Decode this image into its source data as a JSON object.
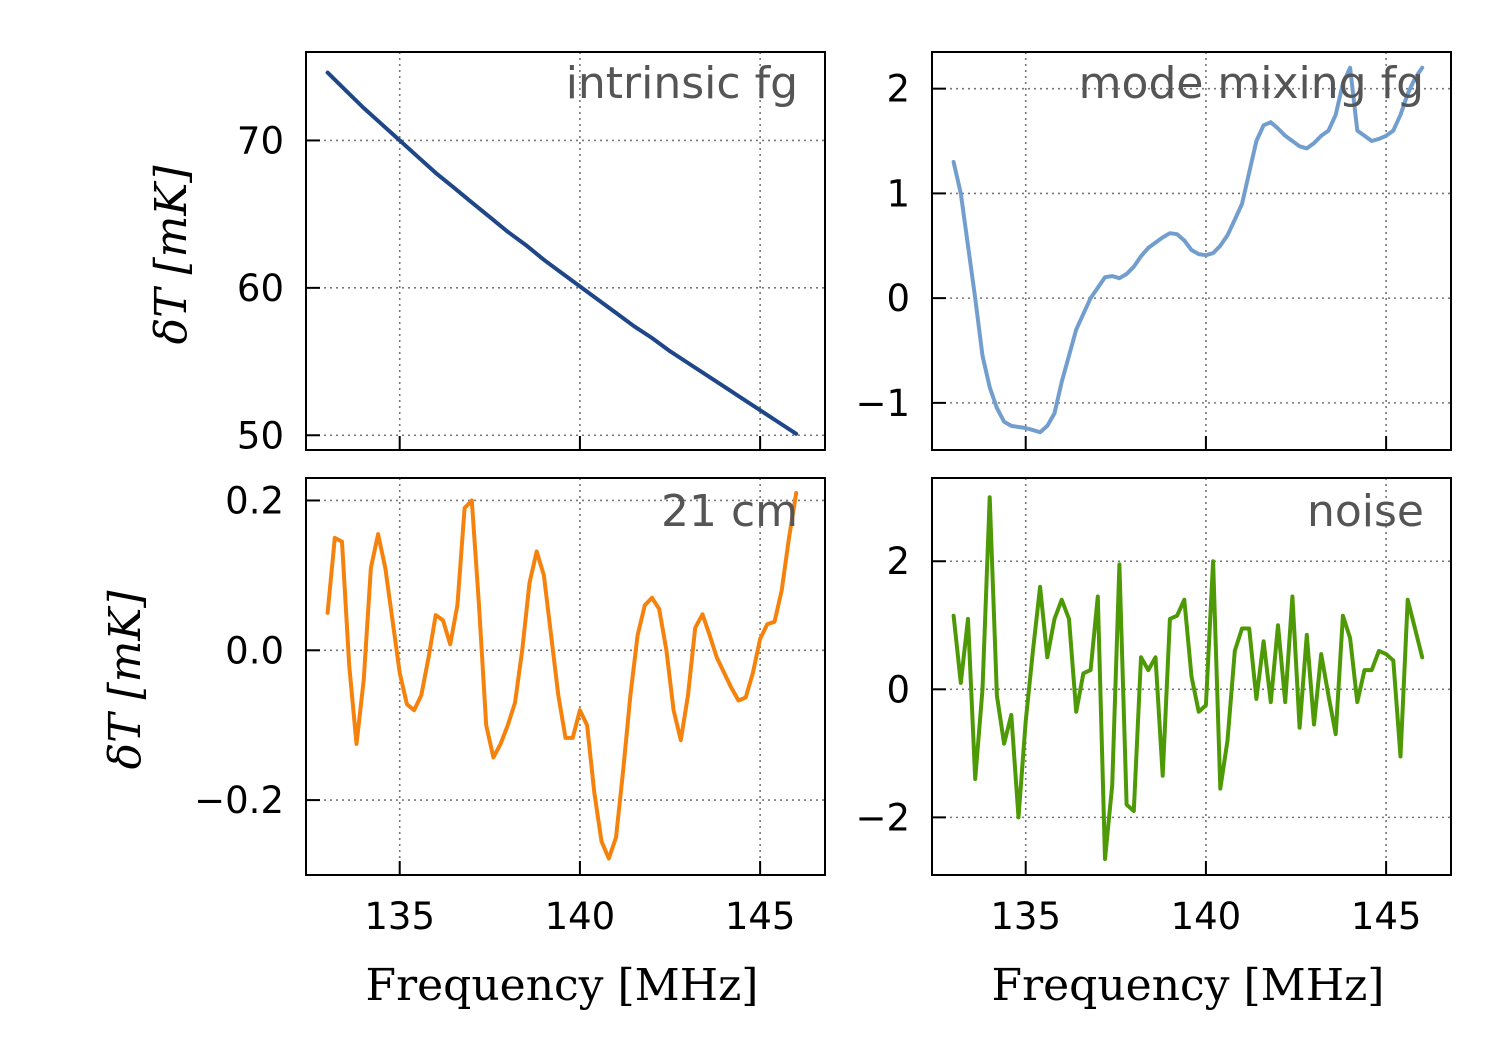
{
  "chart_data": [
    {
      "type": "line",
      "panel": "top-left",
      "title": "intrinsic fg",
      "xlabel": "",
      "ylabel": "δT [mK]",
      "xlim": [
        132.4,
        146.8
      ],
      "ylim": [
        49.0,
        76.0
      ],
      "xticks": [
        135,
        140,
        145
      ],
      "xtick_labels": [
        "135",
        "140",
        "145"
      ],
      "yticks": [
        50,
        60,
        70
      ],
      "ytick_labels": [
        "50",
        "60",
        "70"
      ],
      "color": "#1f4788",
      "x": [
        133.0,
        133.5,
        134.0,
        134.5,
        135.0,
        135.5,
        136.0,
        136.5,
        137.0,
        137.5,
        138.0,
        138.5,
        139.0,
        139.5,
        140.0,
        140.5,
        141.0,
        141.5,
        142.0,
        142.5,
        143.0,
        143.5,
        144.0,
        144.5,
        145.0,
        145.5,
        146.0
      ],
      "y": [
        74.6,
        73.4,
        72.2,
        71.1,
        70.0,
        68.9,
        67.8,
        66.8,
        65.8,
        64.8,
        63.8,
        62.9,
        61.9,
        61.0,
        60.1,
        59.2,
        58.3,
        57.4,
        56.6,
        55.7,
        54.9,
        54.1,
        53.3,
        52.5,
        51.7,
        50.9,
        50.1
      ]
    },
    {
      "type": "line",
      "panel": "top-right",
      "title": "mode mixing fg",
      "xlabel": "",
      "ylabel": "",
      "xlim": [
        132.4,
        146.8
      ],
      "ylim": [
        -1.45,
        2.35
      ],
      "xticks": [
        135,
        140,
        145
      ],
      "xtick_labels": [
        "135",
        "140",
        "145"
      ],
      "yticks": [
        -1,
        0,
        1,
        2
      ],
      "ytick_labels": [
        "−1",
        "0",
        "1",
        "2"
      ],
      "color": "#729ece",
      "x": [
        133.0,
        133.2,
        133.4,
        133.6,
        133.8,
        134.0,
        134.2,
        134.4,
        134.6,
        134.8,
        135.0,
        135.2,
        135.4,
        135.6,
        135.8,
        136.0,
        136.2,
        136.4,
        136.6,
        136.8,
        137.0,
        137.2,
        137.4,
        137.6,
        137.8,
        138.0,
        138.2,
        138.4,
        138.6,
        138.8,
        139.0,
        139.2,
        139.4,
        139.6,
        139.8,
        140.0,
        140.2,
        140.4,
        140.6,
        140.8,
        141.0,
        141.2,
        141.4,
        141.6,
        141.8,
        142.0,
        142.2,
        142.4,
        142.6,
        142.8,
        143.0,
        143.2,
        143.4,
        143.6,
        143.8,
        144.0,
        144.2,
        144.4,
        144.6,
        144.8,
        145.0,
        145.2,
        145.4,
        145.6,
        145.8,
        146.0
      ],
      "y": [
        1.3,
        1.0,
        0.5,
        0.0,
        -0.55,
        -0.85,
        -1.05,
        -1.18,
        -1.22,
        -1.23,
        -1.24,
        -1.26,
        -1.28,
        -1.22,
        -1.1,
        -0.8,
        -0.55,
        -0.3,
        -0.15,
        0.0,
        0.1,
        0.2,
        0.21,
        0.19,
        0.23,
        0.3,
        0.4,
        0.48,
        0.53,
        0.58,
        0.62,
        0.61,
        0.55,
        0.46,
        0.42,
        0.41,
        0.43,
        0.5,
        0.6,
        0.75,
        0.9,
        1.2,
        1.5,
        1.65,
        1.68,
        1.62,
        1.55,
        1.5,
        1.45,
        1.43,
        1.48,
        1.55,
        1.6,
        1.75,
        2.05,
        2.2,
        1.6,
        1.55,
        1.5,
        1.52,
        1.55,
        1.6,
        1.75,
        1.95,
        2.1,
        2.2
      ]
    },
    {
      "type": "line",
      "panel": "bottom-left",
      "title": "21 cm",
      "xlabel": "Frequency [MHz]",
      "ylabel": "δT [mK]",
      "xlim": [
        132.4,
        146.8
      ],
      "ylim": [
        -0.3,
        0.23
      ],
      "xticks": [
        135,
        140,
        145
      ],
      "xtick_labels": [
        "135",
        "140",
        "145"
      ],
      "yticks": [
        -0.2,
        0.0,
        0.2
      ],
      "ytick_labels": [
        "−0.2",
        "0.0",
        "0.2"
      ],
      "color": "#f5820d",
      "x": [
        133.0,
        133.2,
        133.4,
        133.6,
        133.8,
        134.0,
        134.2,
        134.4,
        134.6,
        134.8,
        135.0,
        135.2,
        135.4,
        135.6,
        135.8,
        136.0,
        136.2,
        136.4,
        136.6,
        136.8,
        137.0,
        137.2,
        137.4,
        137.6,
        137.8,
        138.0,
        138.2,
        138.4,
        138.6,
        138.8,
        139.0,
        139.2,
        139.4,
        139.6,
        139.8,
        140.0,
        140.2,
        140.4,
        140.6,
        140.8,
        141.0,
        141.2,
        141.4,
        141.6,
        141.8,
        142.0,
        142.2,
        142.4,
        142.6,
        142.8,
        143.0,
        143.2,
        143.4,
        143.6,
        143.8,
        144.0,
        144.2,
        144.4,
        144.6,
        144.8,
        145.0,
        145.2,
        145.4,
        145.6,
        145.8,
        146.0
      ],
      "y": [
        0.05,
        0.15,
        0.145,
        -0.02,
        -0.125,
        -0.04,
        0.11,
        0.155,
        0.11,
        0.04,
        -0.03,
        -0.072,
        -0.08,
        -0.06,
        -0.01,
        0.047,
        0.04,
        0.008,
        0.06,
        0.19,
        0.2,
        0.06,
        -0.1,
        -0.143,
        -0.125,
        -0.1,
        -0.07,
        0.0,
        0.09,
        0.132,
        0.1,
        0.02,
        -0.06,
        -0.117,
        -0.117,
        -0.08,
        -0.1,
        -0.19,
        -0.255,
        -0.278,
        -0.25,
        -0.16,
        -0.06,
        0.02,
        0.06,
        0.07,
        0.055,
        0.0,
        -0.08,
        -0.12,
        -0.06,
        0.03,
        0.048,
        0.02,
        -0.01,
        -0.03,
        -0.05,
        -0.067,
        -0.063,
        -0.03,
        0.015,
        0.035,
        0.038,
        0.08,
        0.15,
        0.21
      ]
    },
    {
      "type": "line",
      "panel": "bottom-right",
      "title": "noise",
      "xlabel": "Frequency [MHz]",
      "ylabel": "",
      "xlim": [
        132.4,
        146.8
      ],
      "ylim": [
        -2.9,
        3.3
      ],
      "xticks": [
        135,
        140,
        145
      ],
      "xtick_labels": [
        "135",
        "140",
        "145"
      ],
      "yticks": [
        -2,
        0,
        2
      ],
      "ytick_labels": [
        "−2",
        "0",
        "2"
      ],
      "color": "#4e9a06",
      "x": [
        133.0,
        133.2,
        133.4,
        133.6,
        133.8,
        134.0,
        134.2,
        134.4,
        134.6,
        134.8,
        135.0,
        135.2,
        135.4,
        135.6,
        135.8,
        136.0,
        136.2,
        136.4,
        136.6,
        136.8,
        137.0,
        137.2,
        137.4,
        137.6,
        137.8,
        138.0,
        138.2,
        138.4,
        138.6,
        138.8,
        139.0,
        139.2,
        139.4,
        139.6,
        139.8,
        140.0,
        140.2,
        140.4,
        140.6,
        140.8,
        141.0,
        141.2,
        141.4,
        141.6,
        141.8,
        142.0,
        142.2,
        142.4,
        142.6,
        142.8,
        143.0,
        143.2,
        143.4,
        143.6,
        143.8,
        144.0,
        144.2,
        144.4,
        144.6,
        144.8,
        145.0,
        145.2,
        145.4,
        145.6,
        145.8,
        146.0
      ],
      "y": [
        1.15,
        0.1,
        1.1,
        -1.4,
        0.0,
        3.0,
        -0.1,
        -0.85,
        -0.4,
        -2.0,
        -0.5,
        0.6,
        1.6,
        0.5,
        1.1,
        1.4,
        1.1,
        -0.35,
        0.25,
        0.3,
        1.45,
        -2.65,
        -1.5,
        1.95,
        -1.8,
        -1.9,
        0.5,
        0.3,
        0.5,
        -1.35,
        1.1,
        1.15,
        1.4,
        0.2,
        -0.35,
        -0.25,
        2.0,
        -1.55,
        -0.8,
        0.6,
        0.95,
        0.95,
        -0.15,
        0.75,
        -0.2,
        1.0,
        -0.2,
        1.45,
        -0.6,
        0.85,
        -0.55,
        0.55,
        -0.1,
        -0.7,
        1.15,
        0.8,
        -0.2,
        0.3,
        0.3,
        0.6,
        0.55,
        0.45,
        -1.05,
        1.4,
        0.95,
        0.5
      ]
    }
  ]
}
